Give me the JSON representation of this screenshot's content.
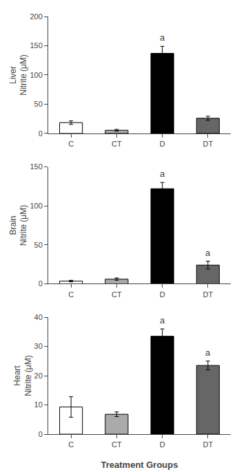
{
  "chart_data": [
    {
      "type": "bar",
      "ylabel": "Liver\nNitrite (μM)",
      "categories": [
        "C",
        "CT",
        "D",
        "DT"
      ],
      "values": [
        18.5,
        5.5,
        137.0,
        26.0
      ],
      "errors": [
        3.0,
        1.5,
        12.0,
        3.5
      ],
      "colors": [
        "#ffffff",
        "#aaaaaa",
        "#000000",
        "#666666"
      ],
      "ylim": [
        0,
        200
      ],
      "yticks": [
        0,
        50,
        100,
        150,
        200
      ],
      "grid": false,
      "annotations": [
        {
          "category": "D",
          "text": "a"
        }
      ]
    },
    {
      "type": "bar",
      "ylabel": "Brain\nNitrite (μM)",
      "categories": [
        "C",
        "CT",
        "D",
        "DT"
      ],
      "values": [
        3.5,
        6.0,
        122.0,
        24.0
      ],
      "errors": [
        1.0,
        1.5,
        8.0,
        5.0
      ],
      "colors": [
        "#ffffff",
        "#aaaaaa",
        "#000000",
        "#666666"
      ],
      "ylim": [
        0,
        150
      ],
      "yticks": [
        0,
        50,
        100,
        150
      ],
      "grid": false,
      "annotations": [
        {
          "category": "D",
          "text": "a"
        },
        {
          "category": "DT",
          "text": "a"
        }
      ]
    },
    {
      "type": "bar",
      "ylabel": "Heart\nNitrite (μM)",
      "xlabel": "Treatment Groups",
      "categories": [
        "C",
        "CT",
        "D",
        "DT"
      ],
      "values": [
        9.3,
        6.8,
        33.5,
        23.5
      ],
      "errors": [
        3.5,
        0.8,
        2.5,
        1.5
      ],
      "colors": [
        "#ffffff",
        "#aaaaaa",
        "#000000",
        "#666666"
      ],
      "ylim": [
        0,
        40
      ],
      "yticks": [
        0,
        10,
        20,
        30,
        40
      ],
      "grid": false,
      "annotations": [
        {
          "category": "D",
          "text": "a"
        },
        {
          "category": "DT",
          "text": "a"
        }
      ]
    }
  ]
}
